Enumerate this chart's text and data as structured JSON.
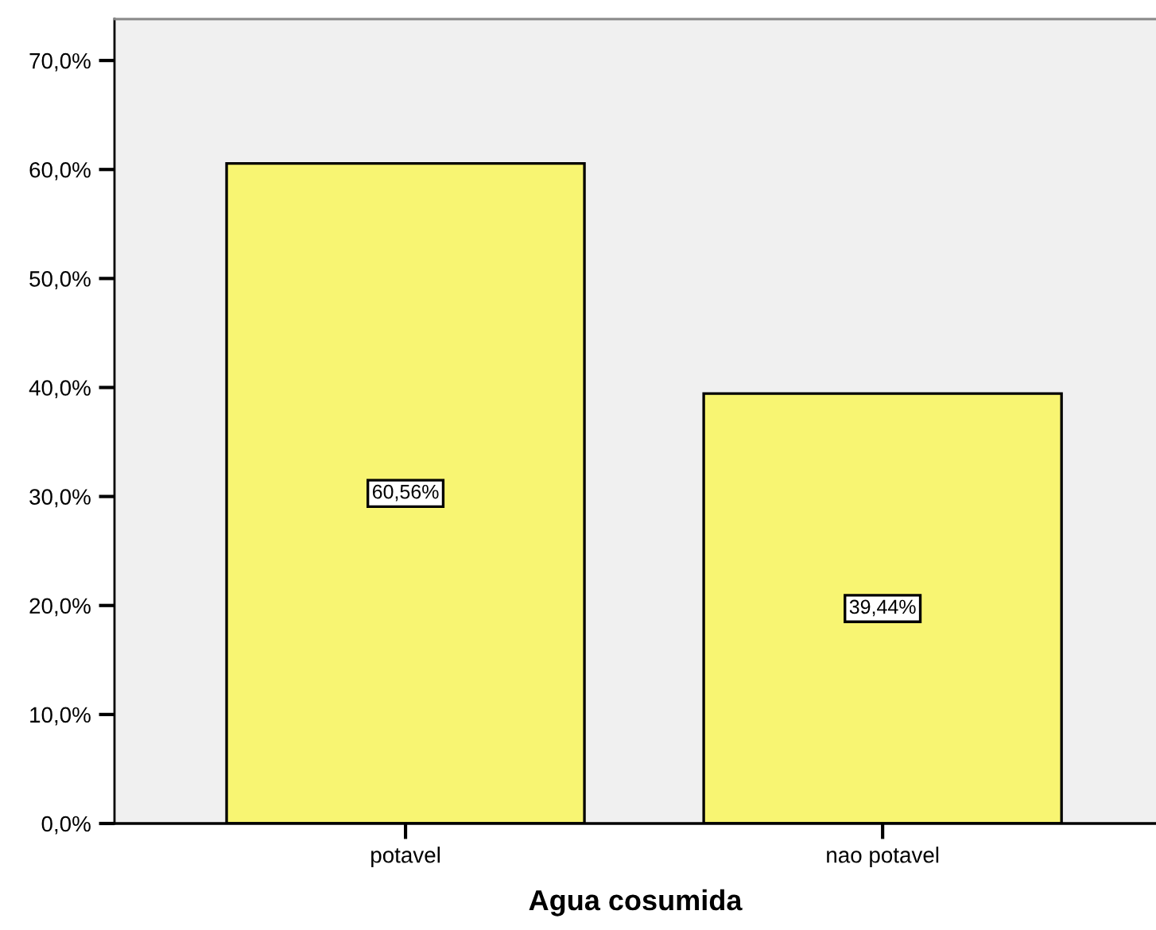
{
  "chart_data": {
    "type": "bar",
    "xlabel": "Agua cosumida",
    "categories": [
      "potavel",
      "nao potavel"
    ],
    "values": [
      60.56,
      39.44
    ],
    "value_labels": [
      "60,56%",
      "39,44%"
    ],
    "color": "#f8f572",
    "ylim": [
      0,
      73.8
    ],
    "yticks": [
      {
        "value": 0,
        "label": "0,0%"
      },
      {
        "value": 10,
        "label": "10,0%"
      },
      {
        "value": 20,
        "label": "20,0%"
      },
      {
        "value": 30,
        "label": "30,0%"
      },
      {
        "value": 40,
        "label": "40,0%"
      },
      {
        "value": 50,
        "label": "50,0%"
      },
      {
        "value": 60,
        "label": "60,0%"
      },
      {
        "value": 70,
        "label": "70,0%"
      }
    ],
    "grid": false
  }
}
